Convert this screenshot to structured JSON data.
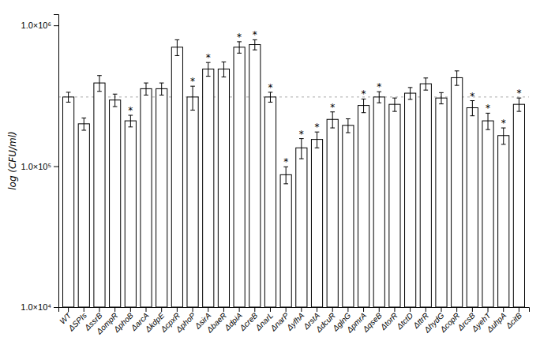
{
  "chart_data": {
    "type": "bar",
    "categories": [
      "WT",
      "ΔSPIs",
      "ΔssrB",
      "ΔompR",
      "ΔphoB",
      "ΔarcA",
      "ΔkdpE",
      "ΔcpxR",
      "ΔphoP",
      "ΔsirA",
      "ΔbaeR",
      "ΔdpiA",
      "ΔcreB",
      "ΔnarL",
      "ΔnarP",
      "ΔyfhA",
      "ΔrstA",
      "ΔdcuR",
      "ΔglnG",
      "ΔpmrA",
      "ΔqseB",
      "ΔtorR",
      "ΔtctD",
      "ΔttrR",
      "ΔhydG",
      "ΔcopR",
      "ΔrcsB",
      "ΔyehT",
      "ΔuhpA",
      "ΔcitB"
    ],
    "values": [
      310000,
      200000,
      390000,
      295000,
      210000,
      355000,
      355000,
      700000,
      310000,
      490000,
      490000,
      700000,
      730000,
      310000,
      87000,
      135000,
      155000,
      215000,
      195000,
      270000,
      310000,
      275000,
      330000,
      385000,
      305000,
      425000,
      260000,
      210000,
      165000,
      275000
    ],
    "errors": [
      25000,
      20000,
      50000,
      30000,
      20000,
      35000,
      35000,
      90000,
      60000,
      55000,
      60000,
      65000,
      60000,
      25000,
      12000,
      22000,
      20000,
      28000,
      22000,
      30000,
      28000,
      30000,
      32000,
      38000,
      28000,
      50000,
      32000,
      28000,
      22000,
      30000
    ],
    "annotations": [
      {
        "category": "ΔphoB",
        "text": "*"
      },
      {
        "category": "ΔphoP",
        "text": "*"
      },
      {
        "category": "ΔsirA",
        "text": "*"
      },
      {
        "category": "ΔdpiA",
        "text": "*"
      },
      {
        "category": "ΔcreB",
        "text": "*"
      },
      {
        "category": "ΔnarL",
        "text": "*"
      },
      {
        "category": "ΔnarP",
        "text": "*"
      },
      {
        "category": "ΔyfhA",
        "text": "*"
      },
      {
        "category": "ΔrstA",
        "text": "*"
      },
      {
        "category": "ΔdcuR",
        "text": "*"
      },
      {
        "category": "ΔpmrA",
        "text": "*"
      },
      {
        "category": "ΔqseB",
        "text": "*"
      },
      {
        "category": "ΔrcsB",
        "text": "*"
      },
      {
        "category": "ΔyehT",
        "text": "*"
      },
      {
        "category": "ΔuhpA",
        "text": "*"
      },
      {
        "category": "ΔcitB",
        "text": "*"
      }
    ],
    "reference_line": 310000,
    "ylabel": "log (CFU/ml)",
    "log": "y",
    "ylim": [
      10000,
      1200000
    ],
    "yticks": [
      {
        "value": 10000,
        "label": "1.0×10⁴"
      },
      {
        "value": 100000,
        "label": "1.0×10⁵"
      },
      {
        "value": 1000000,
        "label": "1.0×10⁶"
      }
    ],
    "color": "white",
    "grid": false
  }
}
